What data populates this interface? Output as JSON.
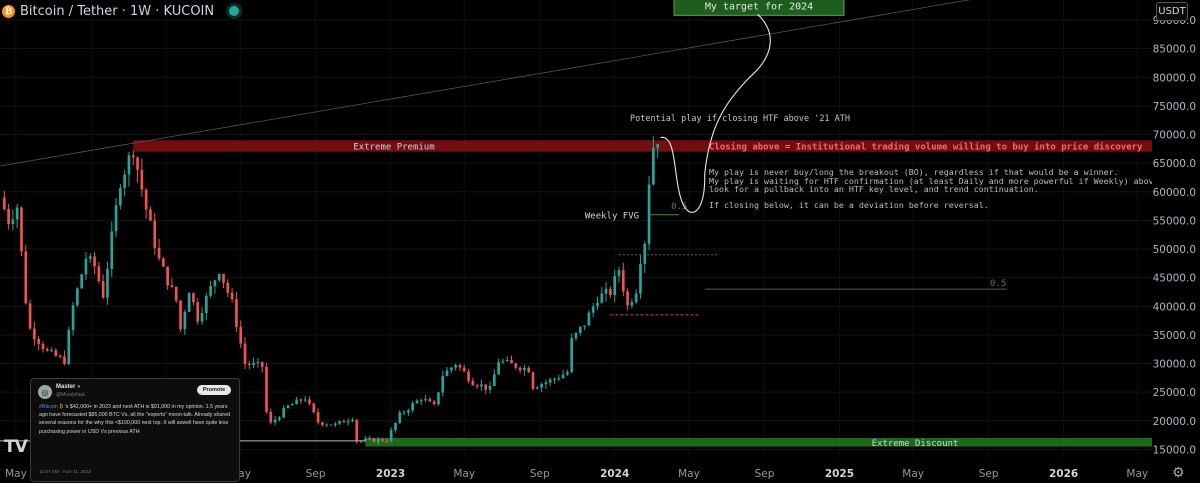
{
  "header": {
    "symbol_title": "Bitcoin / Tether · 1W · KUCOIN",
    "currency": "USDT",
    "coin_icon": "bitcoin-icon",
    "status_icon": "market-open-dot"
  },
  "tweet": {
    "author": "Master",
    "handle": "@Moodyfauc",
    "promote_label": "Promote",
    "tag": "#Bitcoin",
    "text": "'s $42,000+ in 2023 and next ATH is $91,000 in my opinion. 1.5 years ago have forecasted $85,000 BTC Vs. all the \"experts\" moon-talk. Already shared several reasons for the why this <$100,000 next top. It will aswell have quite less purchasing power in USD Vs previous ATH",
    "timestamp": "11:57 AM · Nov 11, 2022"
  },
  "logo_text": "TV",
  "colors": {
    "bull": "#26a69a",
    "bear": "#ef5350",
    "premium_zone": "#7a0e12",
    "discount_zone": "#1d6f1d",
    "target_box": "#1d5e1d",
    "annotation_red": "#f06a6a",
    "background": "#000000"
  },
  "chart_data": {
    "type": "candlestick",
    "title": "Bitcoin / Tether · 1W · KUCOIN",
    "y_axis": {
      "ticks": [
        "15000.0",
        "20000.0",
        "25000.0",
        "30000.0",
        "35000.0",
        "40000.0",
        "45000.0",
        "50000.0",
        "55000.0",
        "60000.0",
        "65000.0",
        "70000.0",
        "75000.0",
        "80000.0",
        "85000.0",
        "90000.0"
      ],
      "range": [
        13500,
        93500
      ],
      "side": "right"
    },
    "x_axis": {
      "ticks": [
        {
          "label": "May",
          "date": "2021-05-01"
        },
        {
          "label": "Sep",
          "date": "2021-09-01"
        },
        {
          "label": "2022",
          "date": "2022-01-01"
        },
        {
          "label": "May",
          "date": "2022-05-01"
        },
        {
          "label": "Sep",
          "date": "2022-09-01"
        },
        {
          "label": "2023",
          "date": "2023-01-01"
        },
        {
          "label": "May",
          "date": "2023-05-01"
        },
        {
          "label": "Sep",
          "date": "2023-09-01"
        },
        {
          "label": "2024",
          "date": "2024-01-01"
        },
        {
          "label": "May",
          "date": "2024-05-01"
        },
        {
          "label": "Sep",
          "date": "2024-09-01"
        },
        {
          "label": "2025",
          "date": "2025-01-01"
        },
        {
          "label": "May",
          "date": "2025-05-01"
        },
        {
          "label": "Sep",
          "date": "2025-09-01"
        },
        {
          "label": "2026",
          "date": "2026-01-01"
        },
        {
          "label": "May",
          "date": "2026-05-01"
        }
      ],
      "range": [
        "2021-04-05",
        "2026-05-25"
      ]
    },
    "price_path_knots": [
      [
        "2021-04-05",
        59000
      ],
      [
        "2021-04-19",
        55000
      ],
      [
        "2021-05-03",
        57500
      ],
      [
        "2021-05-17",
        41000
      ],
      [
        "2021-05-24",
        36000
      ],
      [
        "2021-06-21",
        32000
      ],
      [
        "2021-07-19",
        30500
      ],
      [
        "2021-08-02",
        40000
      ],
      [
        "2021-08-23",
        48500
      ],
      [
        "2021-09-06",
        47000
      ],
      [
        "2021-09-20",
        42000
      ],
      [
        "2021-10-04",
        52000
      ],
      [
        "2021-10-18",
        62000
      ],
      [
        "2021-11-08",
        67500
      ],
      [
        "2021-11-29",
        57000
      ],
      [
        "2021-12-20",
        48000
      ],
      [
        "2022-01-17",
        41000
      ],
      [
        "2022-01-24",
        36000
      ],
      [
        "2022-02-07",
        43000
      ],
      [
        "2022-02-21",
        38000
      ],
      [
        "2022-03-28",
        46500
      ],
      [
        "2022-04-18",
        40500
      ],
      [
        "2022-05-09",
        30000
      ],
      [
        "2022-06-06",
        29500
      ],
      [
        "2022-06-13",
        21500
      ],
      [
        "2022-06-20",
        19500
      ],
      [
        "2022-07-18",
        22500
      ],
      [
        "2022-08-15",
        24000
      ],
      [
        "2022-09-05",
        19800
      ],
      [
        "2022-10-03",
        19300
      ],
      [
        "2022-10-31",
        20600
      ],
      [
        "2022-11-07",
        16500
      ],
      [
        "2022-12-26",
        16700
      ],
      [
        "2023-01-16",
        21000
      ],
      [
        "2023-02-20",
        24000
      ],
      [
        "2023-03-13",
        22500
      ],
      [
        "2023-03-27",
        28000
      ],
      [
        "2023-04-17",
        30000
      ],
      [
        "2023-05-15",
        26800
      ],
      [
        "2023-06-12",
        25500
      ],
      [
        "2023-06-26",
        30500
      ],
      [
        "2023-07-17",
        29800
      ],
      [
        "2023-08-14",
        29000
      ],
      [
        "2023-08-21",
        26000
      ],
      [
        "2023-09-18",
        27000
      ],
      [
        "2023-10-16",
        28500
      ],
      [
        "2023-10-23",
        34000
      ],
      [
        "2023-11-13",
        37000
      ],
      [
        "2023-12-04",
        41500
      ],
      [
        "2023-12-25",
        42500
      ],
      [
        "2024-01-08",
        46500
      ],
      [
        "2024-01-22",
        40000
      ],
      [
        "2024-02-05",
        43000
      ],
      [
        "2024-02-12",
        48500
      ],
      [
        "2024-02-19",
        51500
      ],
      [
        "2024-02-26",
        62000
      ],
      [
        "2024-03-04",
        68000
      ],
      [
        "2024-03-11",
        69500
      ]
    ],
    "levels": [
      {
        "name": "Extreme Premium",
        "type": "zone",
        "from": 67000,
        "to": 69000,
        "start": "2021-11-08"
      },
      {
        "name": "Extreme Discount",
        "type": "zone",
        "from": 15500,
        "to": 17000,
        "start": "2022-11-21"
      },
      {
        "name": "Weekly FVG",
        "type": "level",
        "value": 56000,
        "start": "2024-02-26",
        "end": "2024-04-15"
      },
      {
        "name": "0.5",
        "type": "level",
        "value": 49000,
        "start": "2024-01-08",
        "end": "2024-06-17"
      },
      {
        "name": "0.5",
        "type": "level",
        "value": 43000,
        "start": "2024-05-27",
        "end": "2025-10-01"
      },
      {
        "name": "sell-side level",
        "type": "level",
        "value": 38500,
        "start": "2023-12-25",
        "end": "2024-05-20"
      },
      {
        "name": "white level",
        "type": "level",
        "value": 16500,
        "start": "2021-04-05",
        "end": "2022-11-21"
      }
    ],
    "trendline": {
      "from": [
        "2021-04-05",
        64500
      ],
      "to": [
        "2026-05-25",
        99000
      ]
    },
    "target": {
      "label": "My target for 2024",
      "value": 91000
    },
    "annotations": [
      {
        "id": "premium",
        "text": "Extreme Premium"
      },
      {
        "id": "discount",
        "text": "Extreme Discount"
      },
      {
        "id": "fvg",
        "text": "Weekly FVG"
      },
      {
        "id": "half1",
        "text": "0.5"
      },
      {
        "id": "half2",
        "text": "0.5"
      },
      {
        "id": "potential",
        "text": "Potential play if closing HTF above '21 ATH"
      },
      {
        "id": "closing_above",
        "text": "Closing above = Institutional trading volume willing to buy into price discovery"
      },
      {
        "id": "play1",
        "text": "My play is never buy/long the breakout (BO), regardless if that would be a winner."
      },
      {
        "id": "play2",
        "text": "My play is waiting for HTF confirmation (at least Daily and more powerful if Weekly) above previous highs,"
      },
      {
        "id": "play3",
        "text": "look for a pullback into an HTF key level, and trend continuation."
      },
      {
        "id": "closing_below",
        "text": "If closing below, it can be a deviation before reversal."
      }
    ]
  }
}
